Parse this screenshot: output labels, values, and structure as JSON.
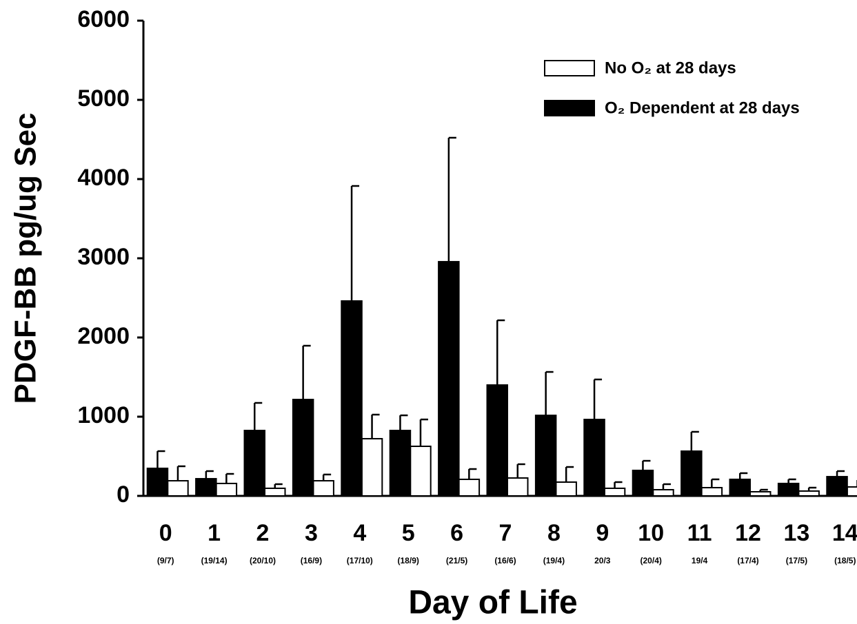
{
  "chart_data": {
    "type": "bar",
    "y_label": "PDGF-BB pg/ug Sec",
    "x_label": "Day of Life",
    "categories": [
      "0",
      "1",
      "2",
      "3",
      "4",
      "5",
      "6",
      "7",
      "8",
      "9",
      "10",
      "11",
      "12",
      "13",
      "14"
    ],
    "category_notes": [
      "(9/7)",
      "(19/14)",
      "(20/10)",
      "(16/9)",
      "(17/10)",
      "(18/9)",
      "(21/5)",
      "(16/6)",
      "(19/4)",
      "20/3",
      "(20/4)",
      "19/4",
      "(17/4)",
      "(17/5)",
      "(18/5)"
    ],
    "series": [
      {
        "name": "No O₂ at 28 days",
        "color": "#ffffff",
        "values": [
          191,
          157,
          96,
          191,
          722,
          626,
          209,
          226,
          174,
          96,
          78,
          104,
          52,
          61,
          113
        ],
        "errors": [
          183,
          121,
          52,
          79,
          304,
          339,
          130,
          174,
          191,
          78,
          70,
          105,
          26,
          43,
          87
        ]
      },
      {
        "name": "O₂ Dependent at 28 days",
        "color": "#000000",
        "values": [
          348,
          217,
          826,
          1217,
          2461,
          826,
          2957,
          1400,
          1017,
          965,
          322,
          565,
          209,
          157,
          243
        ],
        "errors": [
          217,
          96,
          348,
          679,
          1452,
          191,
          1565,
          817,
          548,
          505,
          121,
          244,
          78,
          52,
          70
        ]
      }
    ],
    "ylim": [
      0,
      6000
    ],
    "yticks": [
      0,
      1000,
      2000,
      3000,
      4000,
      5000,
      6000
    ],
    "legend": "upper right"
  }
}
